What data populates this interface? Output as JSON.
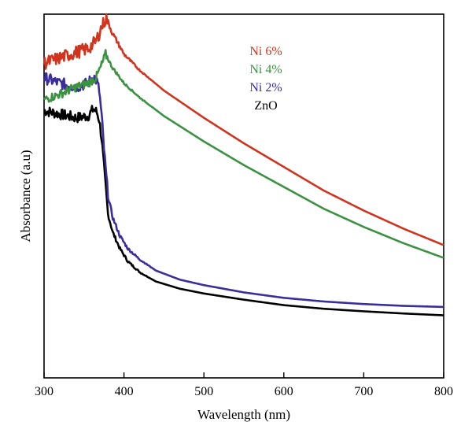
{
  "chart_data": {
    "type": "line",
    "xlabel": "Wavelength (nm)",
    "ylabel": "Absorbance (a.u)",
    "xlim": [
      300,
      800
    ],
    "xticks": [
      300,
      400,
      500,
      600,
      700,
      800
    ],
    "ylim": [
      0,
      1
    ],
    "yticks_shown": false,
    "grid": false,
    "legend_position": "top-center",
    "series": [
      {
        "name": "Ni 6%",
        "color": "#d0341e",
        "x": [
          300,
          320,
          340,
          355,
          365,
          372,
          378,
          385,
          400,
          420,
          450,
          500,
          550,
          600,
          650,
          700,
          750,
          800
        ],
        "y": [
          0.865,
          0.88,
          0.895,
          0.905,
          0.925,
          0.965,
          0.99,
          0.95,
          0.89,
          0.845,
          0.79,
          0.715,
          0.645,
          0.58,
          0.515,
          0.46,
          0.41,
          0.365
        ],
        "noise": 0.018
      },
      {
        "name": "Ni 4%",
        "color": "#3b9241",
        "x": [
          300,
          320,
          340,
          355,
          365,
          372,
          377,
          385,
          400,
          420,
          450,
          500,
          550,
          600,
          650,
          700,
          750,
          800
        ],
        "y": [
          0.765,
          0.78,
          0.8,
          0.81,
          0.825,
          0.86,
          0.89,
          0.855,
          0.81,
          0.77,
          0.72,
          0.65,
          0.585,
          0.525,
          0.465,
          0.415,
          0.37,
          0.33
        ],
        "noise": 0.012
      },
      {
        "name": "Ni 2%",
        "color": "#3a2e9c",
        "x": [
          300,
          320,
          340,
          355,
          362,
          366,
          369,
          372,
          376,
          380,
          386,
          395,
          405,
          420,
          440,
          470,
          500,
          550,
          600,
          650,
          700,
          750,
          800
        ],
        "y": [
          0.825,
          0.81,
          0.8,
          0.81,
          0.83,
          0.815,
          0.79,
          0.72,
          0.6,
          0.5,
          0.44,
          0.39,
          0.355,
          0.325,
          0.295,
          0.27,
          0.255,
          0.235,
          0.22,
          0.21,
          0.203,
          0.198,
          0.195
        ],
        "noise": 0.016
      },
      {
        "name": "ZnO",
        "color": "#000000",
        "x": [
          300,
          320,
          340,
          355,
          362,
          366,
          369,
          372,
          376,
          380,
          386,
          395,
          405,
          420,
          440,
          470,
          500,
          550,
          600,
          650,
          700,
          750,
          800
        ],
        "y": [
          0.735,
          0.725,
          0.715,
          0.72,
          0.74,
          0.73,
          0.71,
          0.66,
          0.55,
          0.45,
          0.4,
          0.355,
          0.32,
          0.29,
          0.265,
          0.245,
          0.232,
          0.215,
          0.2,
          0.19,
          0.183,
          0.177,
          0.172
        ],
        "noise": 0.015
      }
    ]
  }
}
